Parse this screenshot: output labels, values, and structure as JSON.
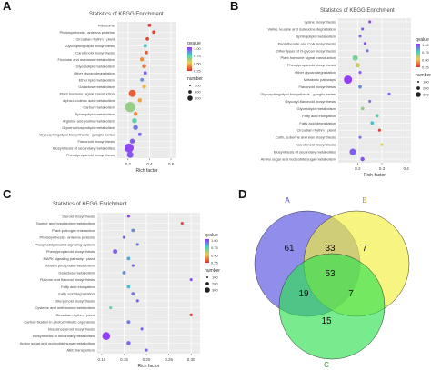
{
  "panel_letters": [
    "A",
    "B",
    "C",
    "D"
  ],
  "colors": {
    "dot_high": "#9b30ff",
    "dot_mid": "#44d0c0",
    "dot_low": "#f2c94c",
    "dot_min": "#e03030"
  },
  "chart_data": [
    {
      "id": "A",
      "type": "scatter",
      "title": "Statistics of KEGG Enrichment",
      "xlabel": "Rich factor",
      "ylabel": "",
      "xlim": [
        0.1,
        0.65
      ],
      "xticks": [
        "0.2",
        "0.4",
        "0.6"
      ],
      "legend_color_title": "qvalue",
      "legend_color_ticks": [
        "1.00",
        "0.75",
        "0.50",
        "0.25"
      ],
      "legend_size_title": "number",
      "legend_size_ticks": [
        "200",
        "400",
        "600"
      ],
      "categories": [
        "Ribosome",
        "Photosynthesis - antenna proteins",
        "Circadian rhythm - plant",
        "Glycosphingolipid biosynthesis",
        "Carotenoid biosynthesis",
        "Fructose and mannose metabolism",
        "Glycerolipid metabolism",
        "Other glycan degradation",
        "Ether lipid metabolism",
        "Galactose metabolism",
        "Plant hormone signal transduction",
        "alpha-Linolenic acid metabolism",
        "Carbon metabolism",
        "Sphingolipid metabolism",
        "Arginine and proline metabolism",
        "Glycerophospholipid metabolism",
        "Glycosphingolipid biosynthesis - ganglio series",
        "Flavonoid biosynthesis",
        "Biosynthesis of secondary metabolites",
        "Phenylpropanoid biosynthesis"
      ],
      "values": [
        0.4,
        0.44,
        0.38,
        0.36,
        0.37,
        0.33,
        0.35,
        0.36,
        0.33,
        0.35,
        0.24,
        0.31,
        0.22,
        0.27,
        0.26,
        0.27,
        0.31,
        0.24,
        0.21,
        0.22
      ],
      "sizes": [
        60,
        60,
        60,
        60,
        60,
        80,
        80,
        60,
        60,
        80,
        250,
        80,
        500,
        80,
        120,
        120,
        60,
        120,
        400,
        200
      ],
      "qvalues": [
        0.02,
        0.04,
        0.05,
        0.7,
        0.1,
        0.2,
        0.15,
        0.9,
        0.8,
        0.3,
        0.1,
        0.25,
        0.5,
        0.2,
        0.6,
        0.85,
        0.88,
        0.9,
        0.95,
        0.92
      ]
    },
    {
      "id": "B",
      "type": "scatter",
      "title": "Statistics of KEGG Enrichment",
      "xlabel": "Rich factor",
      "ylabel": "",
      "xlim": [
        0.12,
        0.42
      ],
      "xticks": [
        "0.2",
        "0.3",
        "0.4"
      ],
      "legend_color_title": "qvalue",
      "legend_color_ticks": [
        "1.00",
        "0.75",
        "0.50",
        "0.25"
      ],
      "legend_size_title": "number",
      "legend_size_ticks": [
        "100",
        "200",
        "300"
      ],
      "categories": [
        "Lysine biosynthesis",
        "Valine, leucine and isoleucine degradation",
        "Sphingolipid metabolism",
        "Pantothenate and CoA biosynthesis",
        "Other types of O-glycan biosynthesis",
        "Plant hormone signal transduction",
        "Phenylpropanoid biosynthesis",
        "Other glycan degradation",
        "Metabolic pathways",
        "Flavonoid biosynthesis",
        "Glycosphingolipid biosynthesis - ganglio series",
        "Glycosyl-flavonoid biosynthesis",
        "Glycerolipid metabolism",
        "Fatty acid elongation",
        "Fatty acid degradation",
        "Circadian rhythm - plant",
        "Cutin, suberine and wax biosynthesis",
        "Carotenoid biosynthesis",
        "Biosynthesis of secondary metabolites",
        "Amino sugar and nucleotide sugar metabolism"
      ],
      "values": [
        0.25,
        0.22,
        0.21,
        0.23,
        0.24,
        0.19,
        0.2,
        0.21,
        0.16,
        0.21,
        0.33,
        0.25,
        0.22,
        0.28,
        0.26,
        0.29,
        0.21,
        0.3,
        0.18,
        0.22
      ],
      "sizes": [
        40,
        40,
        40,
        40,
        40,
        150,
        100,
        40,
        320,
        60,
        40,
        40,
        60,
        60,
        60,
        40,
        40,
        40,
        200,
        80
      ],
      "qvalues": [
        0.95,
        0.9,
        0.88,
        0.92,
        0.85,
        0.55,
        0.4,
        0.9,
        0.97,
        0.8,
        0.9,
        0.85,
        0.5,
        0.6,
        0.7,
        0.03,
        0.85,
        0.35,
        0.9,
        0.93
      ]
    },
    {
      "id": "C",
      "type": "scatter",
      "title": "Statistics of KEGG Enrichment",
      "xlabel": "Rich factor",
      "ylabel": "",
      "xlim": [
        0.09,
        0.32
      ],
      "xticks": [
        "0.10",
        "0.15",
        "0.20",
        "0.25",
        "0.30"
      ],
      "legend_color_title": "qvalue",
      "legend_color_ticks": [
        "1.00",
        "0.75",
        "0.50",
        "0.25"
      ],
      "legend_size_title": "number",
      "legend_size_ticks": [
        "100",
        "200",
        "300"
      ],
      "categories": [
        "Steroid biosynthesis",
        "Taurine and hypotaurine metabolism",
        "Plant-pathogen interaction",
        "Photosynthesis - antenna proteins",
        "Phosphatidylinositol signaling system",
        "Phenylpropanoid biosynthesis",
        "MAPK signaling pathway - plant",
        "Inositol phosphate metabolism",
        "Galactose metabolism",
        "Flavone and flavonol biosynthesis",
        "Fatty acid elongation",
        "Fatty acid degradation",
        "Diterpenoid biosynthesis",
        "Cysteine and methionine metabolism",
        "Circadian rhythm - plant",
        "Carbon fixation in photosynthetic organisms",
        "Brassinosteroid biosynthesis",
        "Biosynthesis of secondary metabolites",
        "Amino sugar and nucleotide sugar metabolism",
        "ABC transporters"
      ],
      "values": [
        0.16,
        0.28,
        0.17,
        0.15,
        0.18,
        0.13,
        0.16,
        0.17,
        0.15,
        0.3,
        0.16,
        0.17,
        0.18,
        0.12,
        0.3,
        0.16,
        0.19,
        0.11,
        0.16,
        0.2
      ],
      "sizes": [
        40,
        40,
        60,
        40,
        40,
        100,
        60,
        40,
        60,
        40,
        60,
        60,
        40,
        40,
        40,
        60,
        40,
        300,
        80,
        40
      ],
      "qvalues": [
        0.95,
        0.05,
        0.8,
        0.9,
        0.85,
        0.9,
        0.75,
        0.88,
        0.8,
        0.92,
        0.7,
        0.85,
        0.9,
        0.6,
        0.02,
        0.85,
        0.9,
        0.97,
        0.88,
        0.9
      ]
    },
    {
      "id": "D",
      "type": "venn",
      "title": "",
      "sets": [
        "A",
        "B",
        "C"
      ],
      "set_colors": [
        "#5550e0",
        "#f2f03a",
        "#2ee050"
      ],
      "regions": {
        "A_only": 61,
        "B_only": 7,
        "C_only": 15,
        "AB": 33,
        "AC": 19,
        "BC": 7,
        "ABC": 53
      }
    }
  ]
}
